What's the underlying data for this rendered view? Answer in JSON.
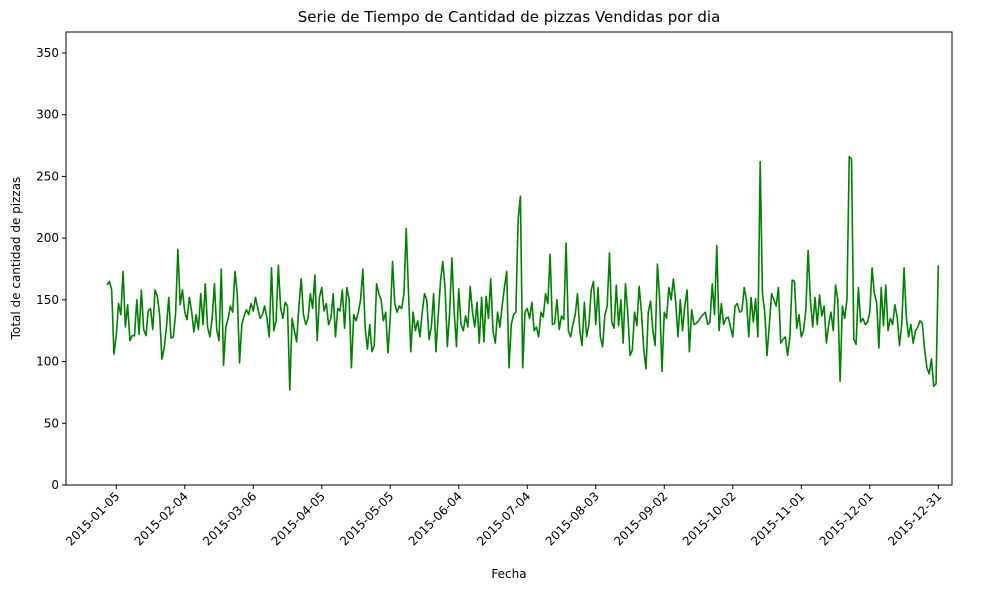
{
  "chart_data": {
    "type": "line",
    "title": "Serie de Tiempo de Cantidad de pizzas Vendidas por dia",
    "xlabel": "Fecha",
    "ylabel": "Total de cantidad de pizzas",
    "color": "#008000",
    "grid": false,
    "xlim": [
      "2014-12-14",
      "2016-01-06"
    ],
    "ylim": [
      0,
      367
    ],
    "xticks": [
      "2015-01-05",
      "2015-02-04",
      "2015-03-06",
      "2015-04-05",
      "2015-05-05",
      "2015-06-04",
      "2015-07-04",
      "2015-08-03",
      "2015-09-02",
      "2015-10-02",
      "2015-11-01",
      "2015-12-01",
      "2015-12-31"
    ],
    "yticks": [
      0,
      50,
      100,
      150,
      200,
      250,
      300,
      350
    ],
    "x": [
      "2015-01-01",
      "2015-01-02",
      "2015-01-03",
      "2015-01-04",
      "2015-01-05",
      "2015-01-06",
      "2015-01-07",
      "2015-01-08",
      "2015-01-09",
      "2015-01-10",
      "2015-01-11",
      "2015-01-12",
      "2015-01-13",
      "2015-01-14",
      "2015-01-15",
      "2015-01-16",
      "2015-01-17",
      "2015-01-18",
      "2015-01-19",
      "2015-01-20",
      "2015-01-21",
      "2015-01-22",
      "2015-01-23",
      "2015-01-24",
      "2015-01-25",
      "2015-01-26",
      "2015-01-27",
      "2015-01-28",
      "2015-01-29",
      "2015-01-30",
      "2015-01-31",
      "2015-02-01",
      "2015-02-02",
      "2015-02-03",
      "2015-02-04",
      "2015-02-05",
      "2015-02-06",
      "2015-02-07",
      "2015-02-08",
      "2015-02-09",
      "2015-02-10",
      "2015-02-11",
      "2015-02-12",
      "2015-02-13",
      "2015-02-14",
      "2015-02-15",
      "2015-02-16",
      "2015-02-17",
      "2015-02-18",
      "2015-02-19",
      "2015-02-20",
      "2015-02-21",
      "2015-02-22",
      "2015-02-23",
      "2015-02-24",
      "2015-02-25",
      "2015-02-26",
      "2015-02-27",
      "2015-02-28",
      "2015-03-01",
      "2015-03-02",
      "2015-03-03",
      "2015-03-04",
      "2015-03-05",
      "2015-03-06",
      "2015-03-07",
      "2015-03-08",
      "2015-03-09",
      "2015-03-10",
      "2015-03-11",
      "2015-03-12",
      "2015-03-13",
      "2015-03-14",
      "2015-03-15",
      "2015-03-16",
      "2015-03-17",
      "2015-03-18",
      "2015-03-19",
      "2015-03-20",
      "2015-03-21",
      "2015-03-22",
      "2015-03-23",
      "2015-03-24",
      "2015-03-25",
      "2015-03-26",
      "2015-03-27",
      "2015-03-28",
      "2015-03-29",
      "2015-03-30",
      "2015-03-31",
      "2015-04-01",
      "2015-04-02",
      "2015-04-03",
      "2015-04-04",
      "2015-04-05",
      "2015-04-06",
      "2015-04-07",
      "2015-04-08",
      "2015-04-09",
      "2015-04-10",
      "2015-04-11",
      "2015-04-12",
      "2015-04-13",
      "2015-04-14",
      "2015-04-15",
      "2015-04-16",
      "2015-04-17",
      "2015-04-18",
      "2015-04-19",
      "2015-04-20",
      "2015-04-21",
      "2015-04-22",
      "2015-04-23",
      "2015-04-24",
      "2015-04-25",
      "2015-04-26",
      "2015-04-27",
      "2015-04-28",
      "2015-04-29",
      "2015-04-30",
      "2015-05-01",
      "2015-05-02",
      "2015-05-03",
      "2015-05-04",
      "2015-05-05",
      "2015-05-06",
      "2015-05-07",
      "2015-05-08",
      "2015-05-09",
      "2015-05-10",
      "2015-05-11",
      "2015-05-12",
      "2015-05-13",
      "2015-05-14",
      "2015-05-15",
      "2015-05-16",
      "2015-05-17",
      "2015-05-18",
      "2015-05-19",
      "2015-05-20",
      "2015-05-21",
      "2015-05-22",
      "2015-05-23",
      "2015-05-24",
      "2015-05-25",
      "2015-05-26",
      "2015-05-27",
      "2015-05-28",
      "2015-05-29",
      "2015-05-30",
      "2015-05-31",
      "2015-06-01",
      "2015-06-02",
      "2015-06-03",
      "2015-06-04",
      "2015-06-05",
      "2015-06-06",
      "2015-06-07",
      "2015-06-08",
      "2015-06-09",
      "2015-06-10",
      "2015-06-11",
      "2015-06-12",
      "2015-06-13",
      "2015-06-14",
      "2015-06-15",
      "2015-06-16",
      "2015-06-17",
      "2015-06-18",
      "2015-06-19",
      "2015-06-20",
      "2015-06-21",
      "2015-06-22",
      "2015-06-23",
      "2015-06-24",
      "2015-06-25",
      "2015-06-26",
      "2015-06-27",
      "2015-06-28",
      "2015-06-29",
      "2015-06-30",
      "2015-07-01",
      "2015-07-02",
      "2015-07-03",
      "2015-07-04",
      "2015-07-05",
      "2015-07-06",
      "2015-07-07",
      "2015-07-08",
      "2015-07-09",
      "2015-07-10",
      "2015-07-11",
      "2015-07-12",
      "2015-07-13",
      "2015-07-14",
      "2015-07-15",
      "2015-07-16",
      "2015-07-17",
      "2015-07-18",
      "2015-07-19",
      "2015-07-20",
      "2015-07-21",
      "2015-07-22",
      "2015-07-23",
      "2015-07-24",
      "2015-07-25",
      "2015-07-26",
      "2015-07-27",
      "2015-07-28",
      "2015-07-29",
      "2015-07-30",
      "2015-07-31",
      "2015-08-01",
      "2015-08-02",
      "2015-08-03",
      "2015-08-04",
      "2015-08-05",
      "2015-08-06",
      "2015-08-07",
      "2015-08-08",
      "2015-08-09",
      "2015-08-10",
      "2015-08-11",
      "2015-08-12",
      "2015-08-13",
      "2015-08-14",
      "2015-08-15",
      "2015-08-16",
      "2015-08-17",
      "2015-08-18",
      "2015-08-19",
      "2015-08-20",
      "2015-08-21",
      "2015-08-22",
      "2015-08-23",
      "2015-08-24",
      "2015-08-25",
      "2015-08-26",
      "2015-08-27",
      "2015-08-28",
      "2015-08-29",
      "2015-08-30",
      "2015-08-31",
      "2015-09-01",
      "2015-09-02",
      "2015-09-03",
      "2015-09-04",
      "2015-09-05",
      "2015-09-06",
      "2015-09-07",
      "2015-09-08",
      "2015-09-09",
      "2015-09-10",
      "2015-09-11",
      "2015-09-12",
      "2015-09-13",
      "2015-09-14",
      "2015-09-15",
      "2015-09-16",
      "2015-09-17",
      "2015-09-18",
      "2015-09-19",
      "2015-09-20",
      "2015-09-21",
      "2015-09-22",
      "2015-09-23",
      "2015-09-24",
      "2015-09-25",
      "2015-09-26",
      "2015-09-27",
      "2015-09-28",
      "2015-09-29",
      "2015-09-30",
      "2015-10-01",
      "2015-10-02",
      "2015-10-03",
      "2015-10-04",
      "2015-10-05",
      "2015-10-06",
      "2015-10-07",
      "2015-10-08",
      "2015-10-09",
      "2015-10-10",
      "2015-10-11",
      "2015-10-12",
      "2015-10-13",
      "2015-10-14",
      "2015-10-15",
      "2015-10-16",
      "2015-10-17",
      "2015-10-18",
      "2015-10-19",
      "2015-10-20",
      "2015-10-21",
      "2015-10-22",
      "2015-10-23",
      "2015-10-24",
      "2015-10-25",
      "2015-10-26",
      "2015-10-27",
      "2015-10-28",
      "2015-10-29",
      "2015-10-30",
      "2015-10-31",
      "2015-11-01",
      "2015-11-02",
      "2015-11-03",
      "2015-11-04",
      "2015-11-05",
      "2015-11-06",
      "2015-11-07",
      "2015-11-08",
      "2015-11-09",
      "2015-11-10",
      "2015-11-11",
      "2015-11-12",
      "2015-11-13",
      "2015-11-14",
      "2015-11-15",
      "2015-11-16",
      "2015-11-17",
      "2015-11-18",
      "2015-11-19",
      "2015-11-20",
      "2015-11-21",
      "2015-11-22",
      "2015-11-23",
      "2015-11-24",
      "2015-11-25",
      "2015-11-26",
      "2015-11-27",
      "2015-11-28",
      "2015-11-29",
      "2015-11-30",
      "2015-12-01",
      "2015-12-02",
      "2015-12-03",
      "2015-12-04",
      "2015-12-05",
      "2015-12-06",
      "2015-12-07",
      "2015-12-08",
      "2015-12-09",
      "2015-12-10",
      "2015-12-11",
      "2015-12-12",
      "2015-12-13",
      "2015-12-14",
      "2015-12-15",
      "2015-12-16",
      "2015-12-17",
      "2015-12-18",
      "2015-12-19",
      "2015-12-20",
      "2015-12-21",
      "2015-12-22",
      "2015-12-23",
      "2015-12-24",
      "2015-12-25",
      "2015-12-26",
      "2015-12-27",
      "2015-12-28",
      "2015-12-29",
      "2015-12-30",
      "2015-12-31"
    ],
    "values": [
      162,
      165,
      158,
      106,
      121,
      147,
      138,
      173,
      128,
      146,
      117,
      121,
      121,
      150,
      122,
      158,
      126,
      121,
      141,
      143,
      126,
      158,
      153,
      138,
      102,
      111,
      128,
      152,
      119,
      120,
      139,
      191,
      146,
      158,
      140,
      134,
      152,
      141,
      124,
      138,
      126,
      155,
      130,
      163,
      128,
      120,
      135,
      163,
      126,
      117,
      175,
      97,
      128,
      135,
      145,
      140,
      173,
      155,
      99,
      130,
      137,
      142,
      138,
      147,
      141,
      152,
      143,
      135,
      138,
      145,
      135,
      120,
      176,
      125,
      133,
      178,
      143,
      135,
      148,
      145,
      77,
      135,
      125,
      116,
      145,
      167,
      138,
      130,
      135,
      155,
      143,
      170,
      117,
      152,
      160,
      141,
      147,
      130,
      135,
      155,
      120,
      143,
      141,
      158,
      127,
      160,
      150,
      95,
      138,
      133,
      140,
      150,
      175,
      128,
      110,
      130,
      108,
      113,
      163,
      155,
      150,
      133,
      140,
      107,
      135,
      181,
      147,
      140,
      145,
      143,
      155,
      208,
      155,
      108,
      140,
      125,
      133,
      120,
      140,
      155,
      150,
      118,
      128,
      155,
      108,
      137,
      165,
      181,
      160,
      112,
      140,
      184,
      140,
      112,
      159,
      130,
      125,
      137,
      128,
      161,
      140,
      128,
      148,
      115,
      152,
      116,
      153,
      135,
      167,
      125,
      115,
      140,
      128,
      145,
      160,
      173,
      95,
      130,
      138,
      140,
      215,
      234,
      95,
      140,
      143,
      135,
      148,
      125,
      128,
      120,
      140,
      136,
      155,
      147,
      187,
      130,
      131,
      150,
      126,
      137,
      134,
      196,
      125,
      120,
      130,
      138,
      155,
      125,
      113,
      148,
      120,
      130,
      158,
      165,
      130,
      160,
      120,
      112,
      138,
      145,
      188,
      132,
      127,
      162,
      129,
      150,
      115,
      163,
      140,
      105,
      109,
      140,
      129,
      161,
      140,
      110,
      94,
      140,
      149,
      125,
      113,
      179,
      150,
      92,
      140,
      135,
      160,
      150,
      167,
      148,
      120,
      150,
      125,
      145,
      158,
      108,
      142,
      130,
      131,
      133,
      136,
      138,
      140,
      130,
      132,
      163,
      138,
      194,
      125,
      147,
      130,
      135,
      136,
      128,
      120,
      145,
      147,
      140,
      141,
      160,
      150,
      120,
      152,
      132,
      151,
      120,
      262,
      155,
      140,
      105,
      130,
      155,
      150,
      145,
      160,
      115,
      118,
      120,
      105,
      120,
      166,
      165,
      127,
      138,
      120,
      125,
      142,
      190,
      150,
      128,
      152,
      130,
      154,
      137,
      145,
      115,
      130,
      140,
      125,
      162,
      150,
      84,
      145,
      135,
      150,
      266,
      264,
      118,
      114,
      160,
      132,
      135,
      130,
      132,
      140,
      176,
      155,
      148,
      111,
      160,
      129,
      162,
      125,
      135,
      130,
      146,
      136,
      113,
      130,
      176,
      136,
      120,
      130,
      115,
      125,
      128,
      133,
      131,
      110,
      95,
      90,
      102,
      80,
      82,
      178
    ]
  }
}
